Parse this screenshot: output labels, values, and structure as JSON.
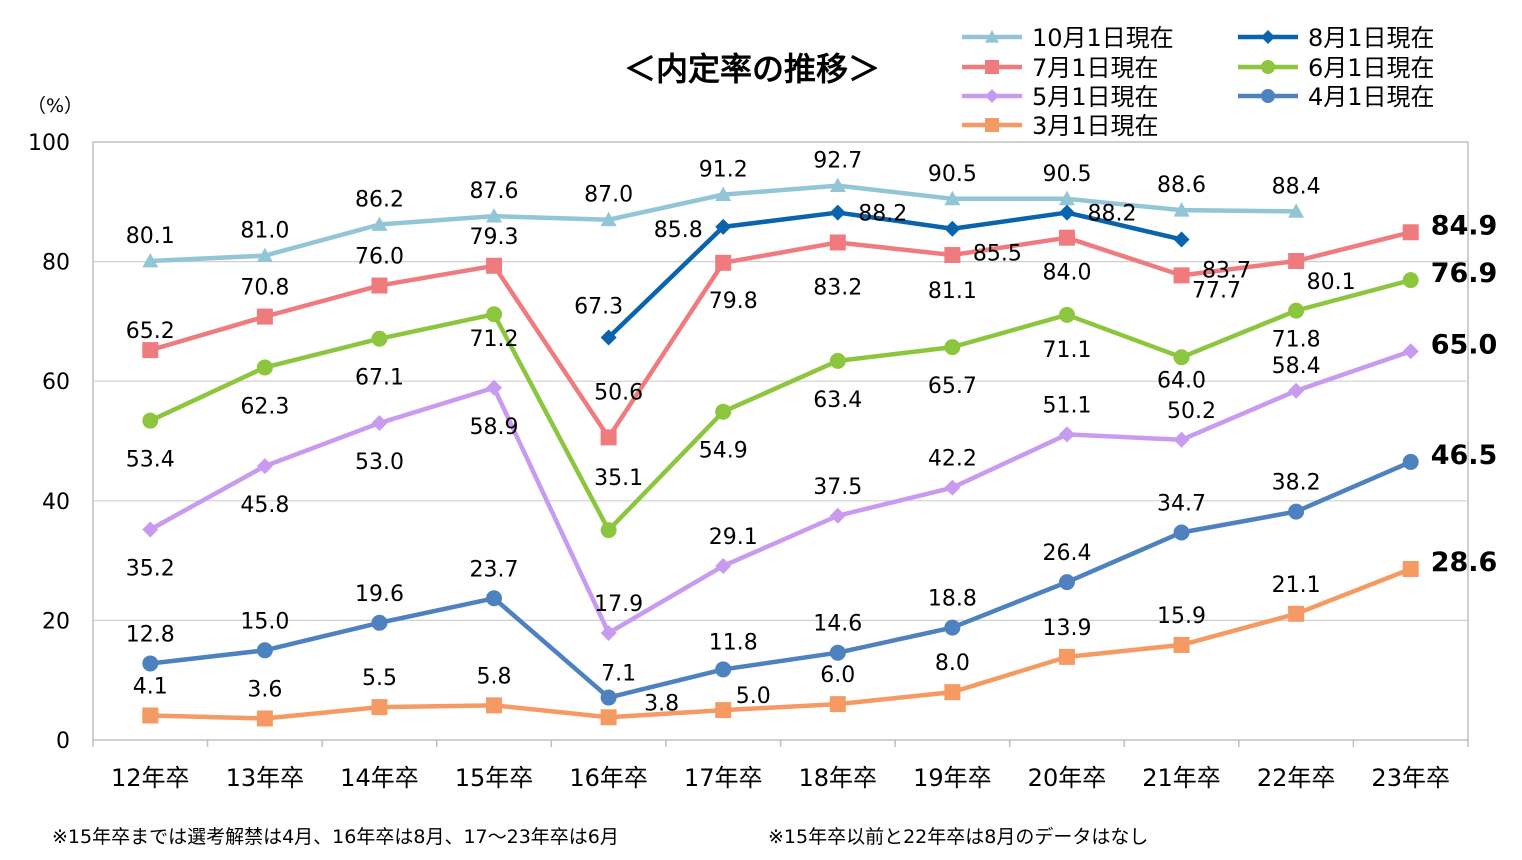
{
  "chart_data": {
    "type": "line",
    "title": "＜内定率の推移＞",
    "ylabel": "（%）",
    "xlabel": "",
    "ylim": [
      0,
      100
    ],
    "yticks": [
      "0",
      "20",
      "40",
      "60",
      "80",
      "100"
    ],
    "categories": [
      "12年卒",
      "13年卒",
      "14年卒",
      "15年卒",
      "16年卒",
      "17年卒",
      "18年卒",
      "19年卒",
      "20年卒",
      "21年卒",
      "22年卒",
      "23年卒"
    ],
    "series": [
      {
        "name": "10月1日現在",
        "color": "#92c5d6",
        "marker": "triangle",
        "values": [
          80.1,
          81.0,
          86.2,
          87.6,
          87.0,
          91.2,
          92.7,
          90.5,
          90.5,
          88.6,
          88.4,
          null
        ],
        "labels": [
          "80.1",
          "81.0",
          "86.2",
          "87.6",
          "87.0",
          "91.2",
          "92.7",
          "90.5",
          "90.5",
          "88.6",
          "88.4",
          ""
        ]
      },
      {
        "name": "8月1日現在",
        "color": "#0a63ad",
        "marker": "diamond",
        "values": [
          null,
          null,
          null,
          null,
          67.3,
          85.8,
          88.2,
          85.5,
          88.2,
          83.7,
          null,
          null
        ],
        "labels": [
          "",
          "",
          "",
          "",
          "67.3",
          "85.8",
          "88.2",
          "85.5",
          "88.2",
          "83.7",
          "",
          ""
        ]
      },
      {
        "name": "7月1日現在",
        "color": "#ef7b7f",
        "marker": "square",
        "values": [
          65.2,
          70.8,
          76.0,
          79.3,
          50.6,
          79.8,
          83.2,
          81.1,
          84.0,
          77.7,
          80.1,
          84.9
        ],
        "labels": [
          "65.2",
          "70.8",
          "76.0",
          "79.3",
          "50.6",
          "79.8",
          "83.2",
          "81.1",
          "84.0",
          "77.7",
          "80.1",
          "84.9"
        ]
      },
      {
        "name": "6月1日現在",
        "color": "#8cc63e",
        "marker": "circle",
        "values": [
          53.4,
          62.3,
          67.1,
          71.2,
          35.1,
          54.9,
          63.4,
          65.7,
          71.1,
          64.0,
          71.8,
          76.9
        ],
        "labels": [
          "53.4",
          "62.3",
          "67.1",
          "71.2",
          "35.1",
          "54.9",
          "63.4",
          "65.7",
          "71.1",
          "64.0",
          "71.8",
          "76.9"
        ]
      },
      {
        "name": "5月1日現在",
        "color": "#c89af0",
        "marker": "diamond",
        "values": [
          35.2,
          45.8,
          53.0,
          58.9,
          17.9,
          29.1,
          37.5,
          42.2,
          51.1,
          50.2,
          58.4,
          65.0
        ],
        "labels": [
          "35.2",
          "45.8",
          "53.0",
          "58.9",
          "17.9",
          "29.1",
          "37.5",
          "42.2",
          "51.1",
          "50.2",
          "58.4",
          "65.0"
        ]
      },
      {
        "name": "4月1日現在",
        "color": "#4e81bf",
        "marker": "circle",
        "values": [
          12.8,
          15.0,
          19.6,
          23.7,
          7.1,
          11.8,
          14.6,
          18.8,
          26.4,
          34.7,
          38.2,
          46.5
        ],
        "labels": [
          "12.8",
          "15.0",
          "19.6",
          "23.7",
          "7.1",
          "11.8",
          "14.6",
          "18.8",
          "26.4",
          "34.7",
          "38.2",
          "46.5"
        ]
      },
      {
        "name": "3月1日現在",
        "color": "#f59a62",
        "marker": "square",
        "values": [
          4.1,
          3.6,
          5.5,
          5.8,
          3.8,
          5.0,
          6.0,
          8.0,
          13.9,
          15.9,
          21.1,
          28.6
        ],
        "labels": [
          "4.1",
          "3.6",
          "5.5",
          "5.8",
          "3.8",
          "5.0",
          "6.0",
          "8.0",
          "13.9",
          "15.9",
          "21.1",
          "28.6"
        ]
      }
    ],
    "legend_order": [
      0,
      1,
      2,
      3,
      4,
      5,
      6
    ],
    "legend_position": "top-right"
  },
  "notes": {
    "left": "※15年卒までは選考解禁は4月、16年卒は8月、17～23年卒は6月",
    "right": "※15年卒以前と22年卒は8月のデータはなし"
  }
}
